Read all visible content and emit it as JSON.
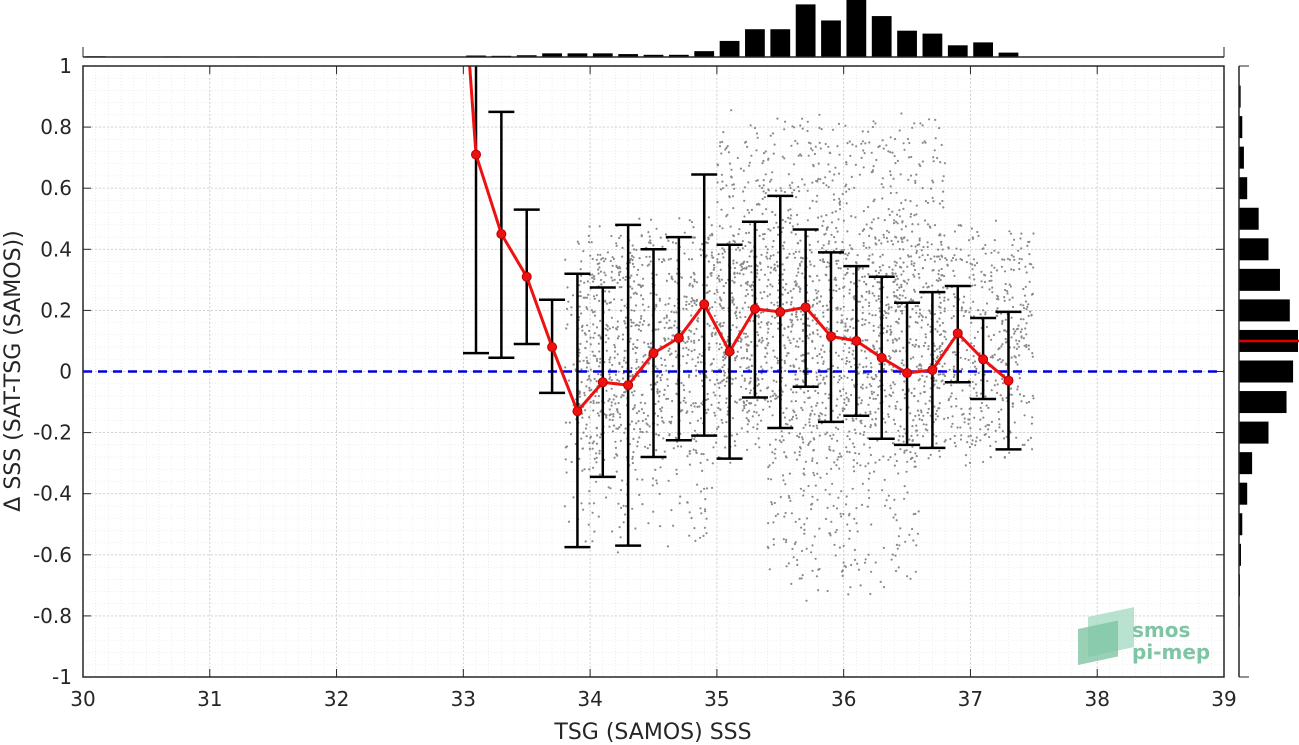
{
  "chart_data": {
    "type": "scatter",
    "xlabel": "TSG (SAMOS) SSS",
    "ylabel": "Δ SSS (SAT-TSG (SAMOS))",
    "xlim": [
      30,
      39
    ],
    "ylim": [
      -1,
      1
    ],
    "x_ticks": [
      "30",
      "31",
      "32",
      "33",
      "34",
      "35",
      "36",
      "37",
      "38",
      "39"
    ],
    "y_ticks": [
      "1",
      "0.8",
      "0.6",
      "0.4",
      "0.2",
      "0",
      "-0.2",
      "-0.4",
      "-0.6",
      "-0.8",
      "-1"
    ],
    "grid": true,
    "reference_line": {
      "y": 0,
      "color": "#0000dd",
      "style": "dashed"
    },
    "binned_mean": {
      "color": "#ee1111",
      "x": [
        33.1,
        33.3,
        33.5,
        33.7,
        33.9,
        34.1,
        34.3,
        34.5,
        34.7,
        34.9,
        35.1,
        35.3,
        35.5,
        35.7,
        35.9,
        36.1,
        36.3,
        36.5,
        36.7,
        36.9,
        37.1,
        37.3
      ],
      "mean": [
        0.71,
        0.45,
        0.31,
        0.08,
        -0.13,
        -0.035,
        -0.045,
        0.06,
        0.11,
        0.22,
        0.065,
        0.205,
        0.195,
        0.21,
        0.115,
        0.1,
        0.045,
        -0.005,
        0.005,
        0.125,
        0.04,
        -0.03
      ],
      "upper": [
        1.05,
        0.85,
        0.53,
        0.235,
        0.32,
        0.275,
        0.48,
        0.4,
        0.44,
        0.645,
        0.415,
        0.49,
        0.575,
        0.465,
        0.39,
        0.345,
        0.31,
        0.225,
        0.26,
        0.28,
        0.175,
        0.195
      ],
      "lower": [
        0.06,
        0.045,
        0.09,
        -0.07,
        -0.575,
        -0.345,
        -0.57,
        -0.28,
        -0.225,
        -0.21,
        -0.285,
        -0.085,
        -0.185,
        -0.05,
        -0.165,
        -0.145,
        -0.22,
        -0.24,
        -0.25,
        -0.035,
        -0.09,
        -0.255
      ],
      "lead_in": {
        "x": [
          33.05,
          33.1
        ],
        "y": [
          1.0,
          0.71
        ]
      }
    },
    "scatter": {
      "color": "#8a8a8a",
      "clusters": [
        {
          "x_range": [
            33.9,
            37.5
          ],
          "y_center": 0.1,
          "y_spread": 0.35,
          "n": 2200
        },
        {
          "x_range": [
            35.0,
            36.8
          ],
          "y_center": 0.35,
          "y_spread": 0.45,
          "n": 900
        },
        {
          "x_range": [
            33.8,
            35.0
          ],
          "y_center": -0.1,
          "y_spread": 0.45,
          "n": 350
        },
        {
          "x_range": [
            35.4,
            36.6
          ],
          "y_center": -0.45,
          "y_spread": 0.25,
          "n": 250
        }
      ]
    },
    "histogram_top": {
      "x_centers": [
        30.1,
        30.3,
        30.5,
        30.7,
        30.9,
        31.1,
        31.3,
        31.5,
        31.7,
        31.9,
        32.1,
        32.3,
        32.5,
        32.7,
        32.9,
        33.1,
        33.3,
        33.5,
        33.7,
        33.9,
        34.1,
        34.3,
        34.5,
        34.7,
        34.9,
        35.1,
        35.3,
        35.5,
        35.7,
        35.9,
        36.1,
        36.3,
        36.5,
        36.7,
        36.9,
        37.1,
        37.3
      ],
      "counts": [
        0.5,
        0,
        0,
        0.4,
        0,
        0,
        0.4,
        0,
        0,
        0,
        0,
        0,
        0,
        0,
        0,
        1,
        0.8,
        1.2,
        2.5,
        2.5,
        2.5,
        2,
        1.5,
        1.5,
        4,
        11,
        19,
        19,
        36,
        25,
        39,
        28,
        18,
        16,
        8,
        10,
        3
      ]
    },
    "histogram_right": {
      "color": "#000000",
      "mean_line": {
        "y": 0.1,
        "color": "#dd0000"
      },
      "y_centers": [
        0.9,
        0.8,
        0.7,
        0.6,
        0.5,
        0.4,
        0.3,
        0.2,
        0.1,
        0.0,
        -0.1,
        -0.2,
        -0.3,
        -0.4,
        -0.5,
        -0.6,
        -0.7,
        -0.8,
        -0.9
      ],
      "counts": [
        0.5,
        1,
        1.5,
        2.5,
        6,
        9,
        12.5,
        15.5,
        18,
        16.5,
        14.5,
        9,
        4,
        2.5,
        1,
        0.6,
        0.3,
        0.2,
        0.1
      ]
    },
    "watermark": {
      "line1": "smos",
      "line2": "pi-mep"
    }
  }
}
